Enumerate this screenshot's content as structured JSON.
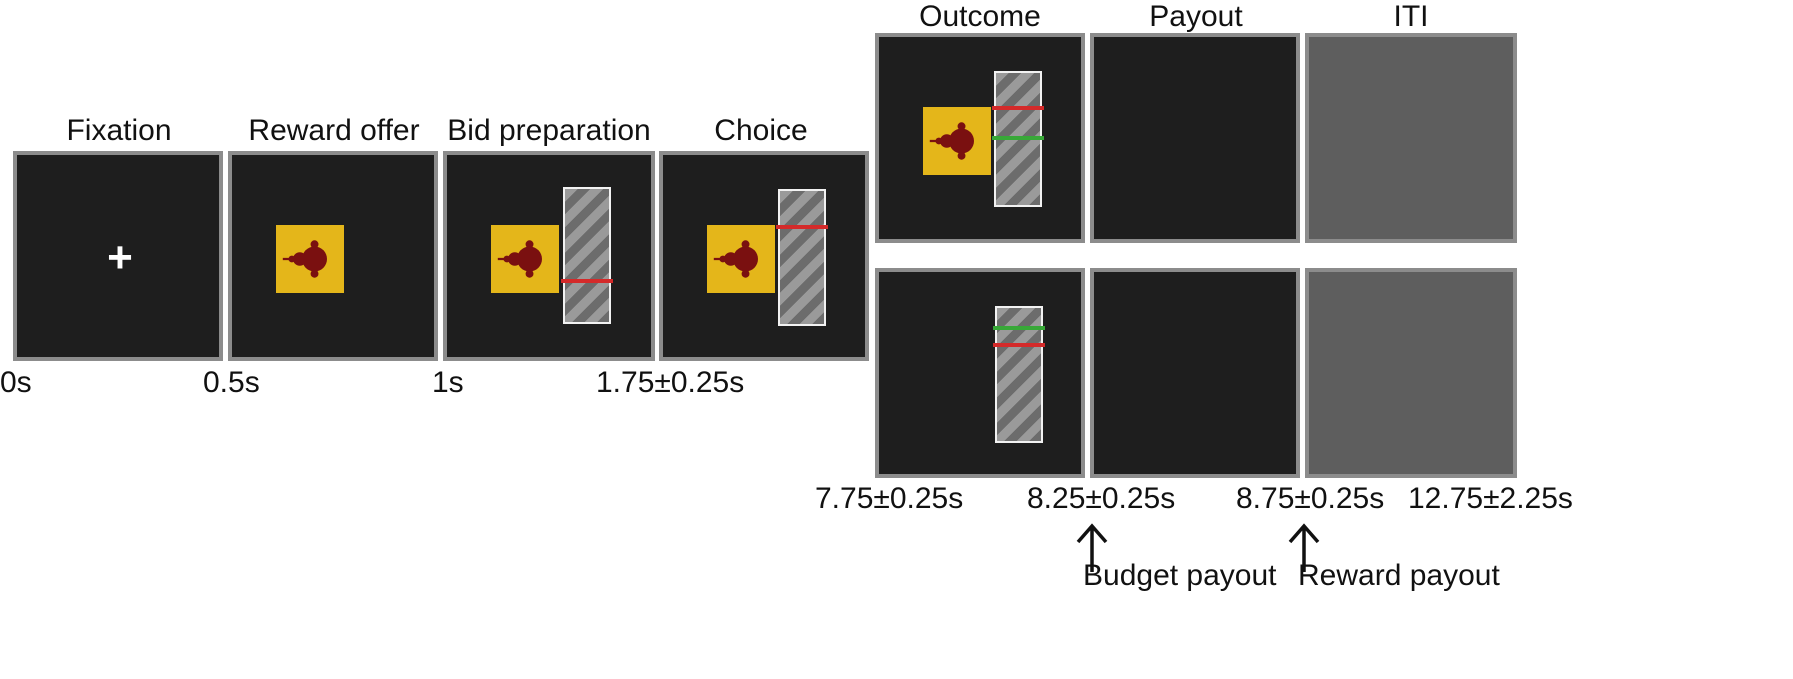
{
  "phases": {
    "fixation": "Fixation",
    "reward_offer": "Reward offer",
    "bid_preparation": "Bid preparation",
    "choice": "Choice",
    "outcome": "Outcome",
    "payout": "Payout",
    "iti": "ITI"
  },
  "fixation_symbol": "+",
  "times_top": [
    "0s",
    "0.5s",
    "1s",
    "1.75±0.25s"
  ],
  "times_bottom": [
    "7.75±0.25s",
    "8.25±0.25s",
    "8.75±0.25s",
    "12.75±2.25s"
  ],
  "payouts": {
    "budget": "Budget payout",
    "reward": "Reward payout"
  },
  "colors": {
    "screen": "#1e1e1e",
    "iti_screen": "#5e5e5e",
    "frame": "#8c8c8c",
    "stimulus_bg": "#e4b61a",
    "stimulus_fractal": "#7a1010",
    "bid_line": "#d42a2a",
    "reference_line": "#38a838"
  }
}
